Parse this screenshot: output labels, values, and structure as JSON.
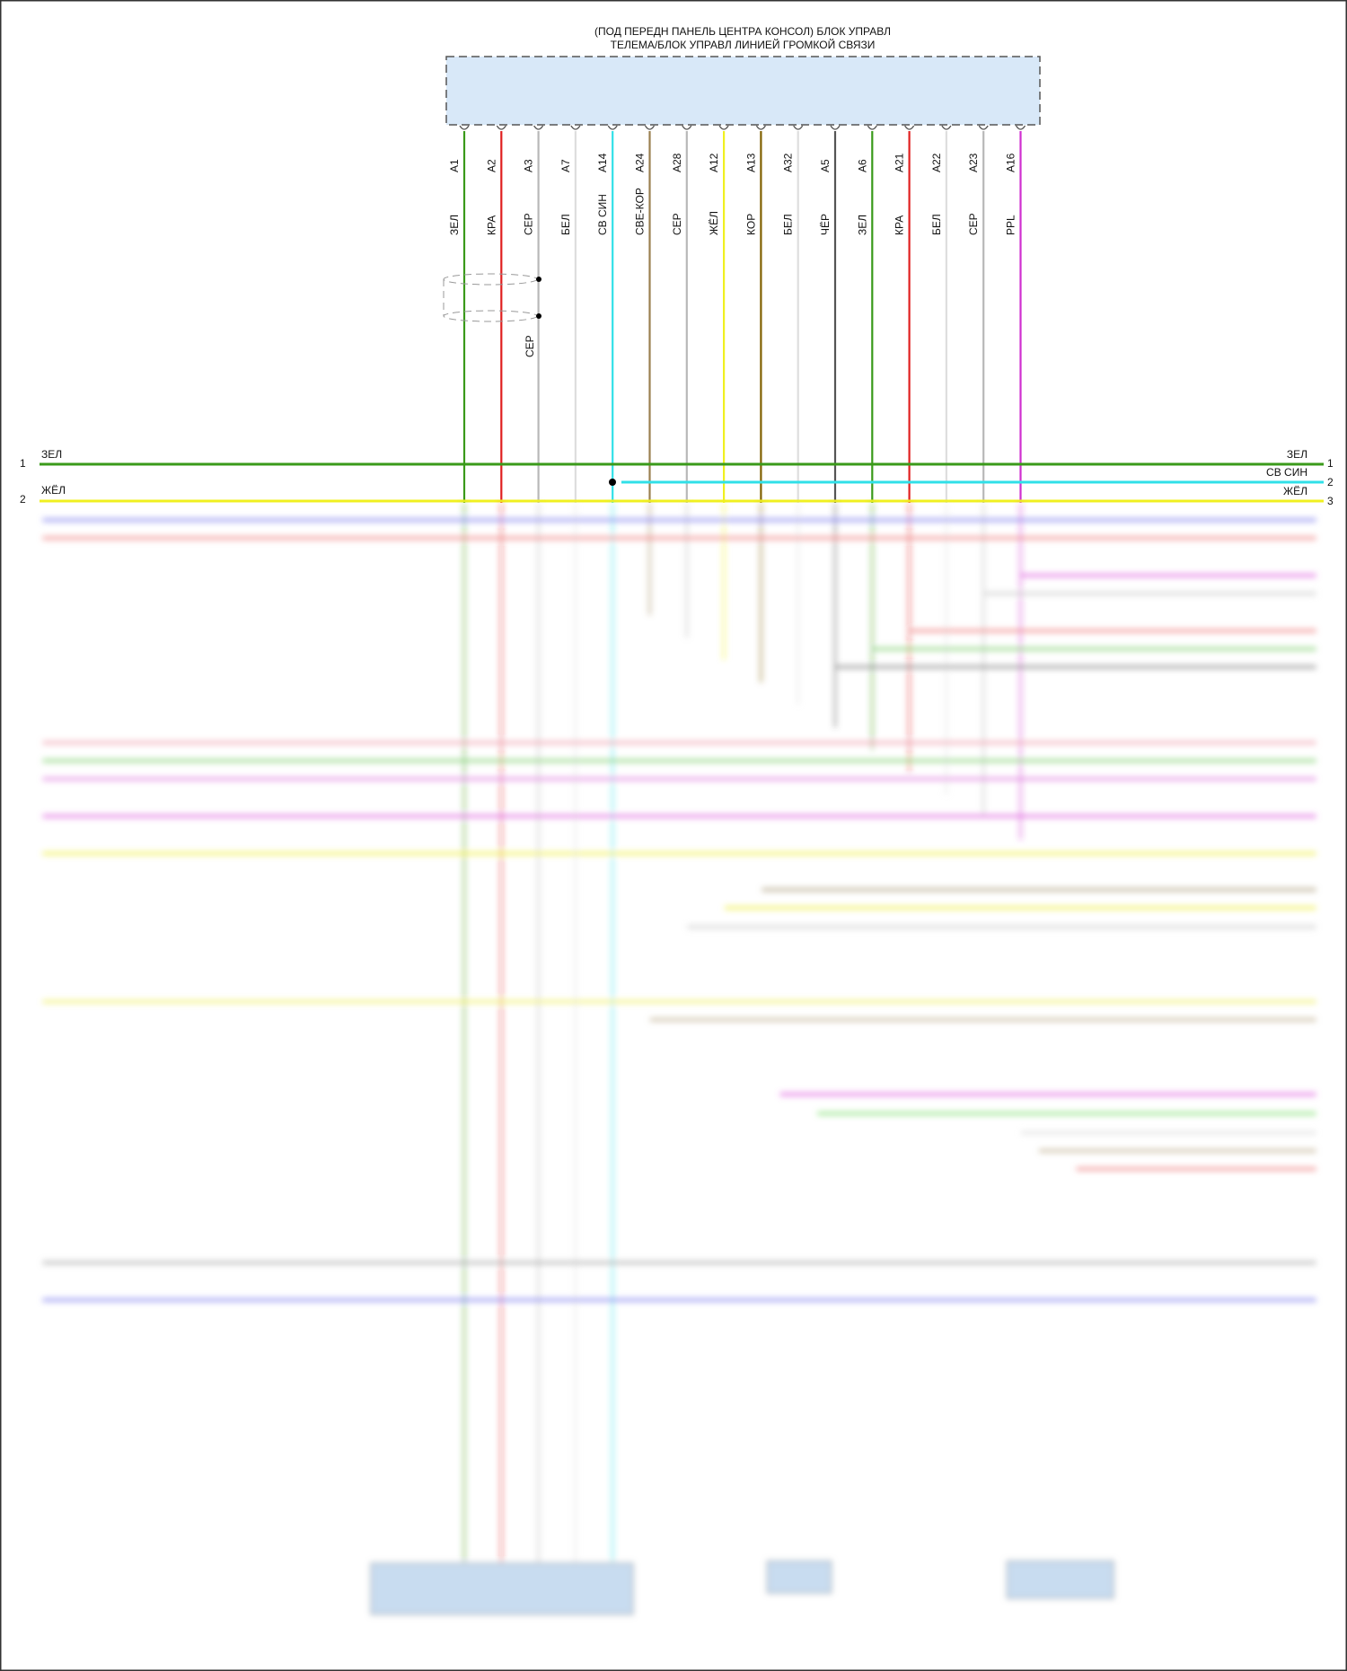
{
  "module": {
    "title_line1": "(ПОД ПЕРЕДН ПАНЕЛЬ ЦЕНТРА КОНСОЛ) БЛОК УПРАВЛ",
    "title_line2": "ТЕЛЕМА/БЛОК УПРАВЛ ЛИНИЕЙ ГРОМКОЙ СВЯЗИ",
    "fill_color": "#d8e8f8",
    "pins": [
      {
        "pin": "A1",
        "wire": "ЗЕЛ",
        "color": "#3a9a1a"
      },
      {
        "pin": "A2",
        "wire": "КРА",
        "color": "#e02020"
      },
      {
        "pin": "A3",
        "wire": "СЕР",
        "color": "#b8b8b8"
      },
      {
        "pin": "A7",
        "wire": "БЕЛ",
        "color": "#dedede"
      },
      {
        "pin": "A14",
        "wire": "СВ СИН",
        "color": "#30e0e8"
      },
      {
        "pin": "A24",
        "wire": "СВЕ-КОР",
        "color": "#9a8050"
      },
      {
        "pin": "A28",
        "wire": "СЕР",
        "color": "#b8b8b8"
      },
      {
        "pin": "A12",
        "wire": "ЖЁЛ",
        "color": "#f0f020"
      },
      {
        "pin": "A13",
        "wire": "КОР",
        "color": "#806000"
      },
      {
        "pin": "A32",
        "wire": "БЕЛ",
        "color": "#dedede"
      },
      {
        "pin": "A5",
        "wire": "ЧЁР",
        "color": "#555555"
      },
      {
        "pin": "A6",
        "wire": "ЗЕЛ",
        "color": "#3a9a1a"
      },
      {
        "pin": "A21",
        "wire": "КРА",
        "color": "#e02020"
      },
      {
        "pin": "A22",
        "wire": "БЕЛ",
        "color": "#dedede"
      },
      {
        "pin": "A23",
        "wire": "СЕР",
        "color": "#b8b8b8"
      },
      {
        "pin": "A16",
        "wire": "PPL",
        "color": "#d030d0"
      }
    ]
  },
  "shield": {
    "wire": "СЕР"
  },
  "buses": {
    "left": [
      {
        "num": "1",
        "label": "ЗЕЛ"
      },
      {
        "num": "2",
        "label": "ЖЁЛ"
      }
    ],
    "right": [
      {
        "num": "1",
        "label": "ЗЕЛ"
      },
      {
        "num": "2",
        "label": "СВ СИН"
      },
      {
        "num": "3",
        "label": "ЖЁЛ"
      }
    ],
    "colors": {
      "green": "#3a9a1a",
      "cyan": "#30e0e8",
      "yellow": "#f0f020"
    }
  }
}
